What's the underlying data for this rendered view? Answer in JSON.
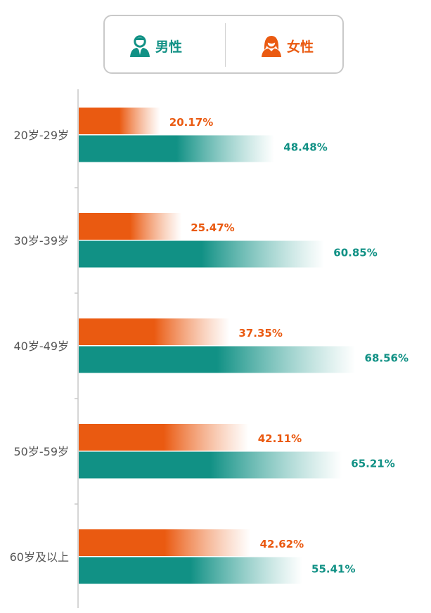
{
  "legend": {
    "male_label": "男性",
    "female_label": "女性",
    "male_icon": "male-user-icon",
    "female_icon": "female-user-icon"
  },
  "colors": {
    "female": "#ea5a11",
    "male": "#119185"
  },
  "chart_data": {
    "type": "bar",
    "orientation": "horizontal",
    "categories": [
      "20岁-29岁",
      "30岁-39岁",
      "40岁-49岁",
      "50岁-59岁",
      "60岁及以上"
    ],
    "series": [
      {
        "name": "女性",
        "values": [
          20.17,
          25.47,
          37.35,
          42.11,
          42.62
        ],
        "labels": [
          "20.17%",
          "25.47%",
          "37.35%",
          "42.11%",
          "42.62%"
        ]
      },
      {
        "name": "男性",
        "values": [
          48.48,
          60.85,
          68.56,
          65.21,
          55.41
        ],
        "labels": [
          "48.48%",
          "60.85%",
          "68.56%",
          "65.21%",
          "55.41%"
        ]
      }
    ],
    "xlim": [
      0,
      100
    ],
    "grid": false,
    "legend_position": "top"
  }
}
